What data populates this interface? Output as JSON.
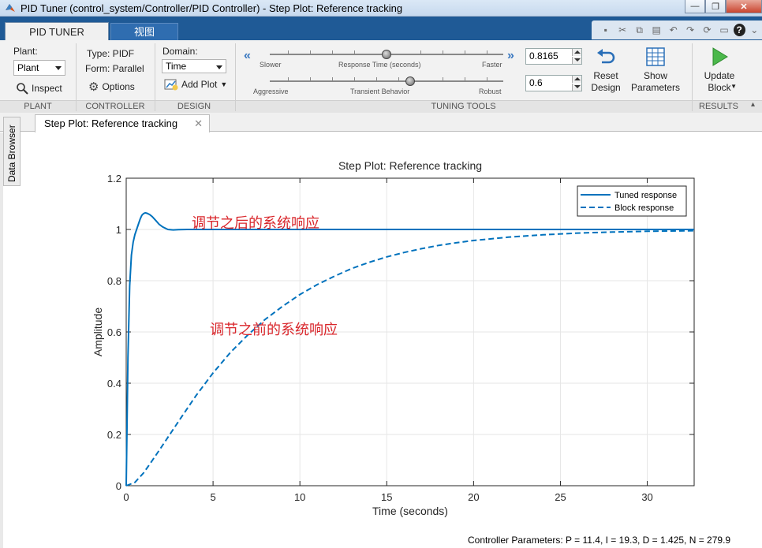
{
  "window": {
    "title": "PID Tuner (control_system/Controller/PID Controller) - Step Plot: Reference tracking",
    "minimize": "—",
    "maximize": "❐",
    "close": "✕"
  },
  "tabs": {
    "main": "PID TUNER",
    "view": "视图"
  },
  "ribbon": {
    "plant": {
      "label": "Plant:",
      "value": "Plant",
      "inspect": "Inspect",
      "section": "PLANT"
    },
    "controller": {
      "type": "Type: PIDF",
      "form": "Form: Parallel",
      "options": "Options",
      "section": "CONTROLLER"
    },
    "design": {
      "domain_label": "Domain:",
      "domain_value": "Time",
      "add_plot": "Add Plot",
      "section": "DESIGN"
    },
    "tuning": {
      "section": "TUNING TOOLS",
      "response_time": {
        "left": "Slower",
        "center": "Response Time (seconds)",
        "right": "Faster",
        "value": "0.8165",
        "level": 0.5
      },
      "transient": {
        "left": "Aggressive",
        "center": "Transient Behavior",
        "right": "Robust",
        "value": "0.6",
        "level": 0.6
      },
      "reset": "Reset\nDesign",
      "show": "Show\nParameters"
    },
    "results": {
      "update": "Update\nBlock",
      "section": "RESULTS"
    }
  },
  "documents": {
    "side_tab": "Data Browser",
    "active_tab": "Step Plot: Reference tracking",
    "close_symbol": "✕"
  },
  "annotations": {
    "after": "调节之后的系统响应",
    "before": "调节之前的系统响应",
    "color": "#d9262b"
  },
  "footer": "Controller Parameters: P = 11.4, I = 19.3, D = 1.425, N = 279.9",
  "chart_data": {
    "type": "line",
    "title": "Step Plot: Reference tracking",
    "xlabel": "Time (seconds)",
    "ylabel": "Amplitude",
    "xlim": [
      0,
      32.7
    ],
    "ylim": [
      0,
      1.2
    ],
    "xticks": [
      0,
      5,
      10,
      15,
      20,
      25,
      30
    ],
    "yticks": [
      0,
      0.2,
      0.4,
      0.6,
      0.8,
      1,
      1.2
    ],
    "ytick_labels": [
      "0",
      "0.2",
      "0.4",
      "0.6",
      "0.8",
      "1",
      "1.2"
    ],
    "grid": true,
    "legend_position": "top-right",
    "series": [
      {
        "name": "Tuned response",
        "style": "solid",
        "color": "#0072bd",
        "x": [
          0,
          0.1,
          0.2,
          0.3,
          0.4,
          0.5,
          0.6,
          0.7,
          0.8,
          0.9,
          1.0,
          1.1,
          1.2,
          1.35,
          1.5,
          1.7,
          1.9,
          2.1,
          2.4,
          2.7,
          3.0,
          3.5,
          4,
          10,
          20,
          32.7
        ],
        "y": [
          0,
          0.5,
          0.78,
          0.9,
          0.95,
          0.98,
          1.0,
          1.02,
          1.04,
          1.055,
          1.062,
          1.065,
          1.063,
          1.058,
          1.05,
          1.035,
          1.02,
          1.01,
          1.0,
          0.998,
          0.999,
          1.0,
          1.0,
          1.0,
          1.0,
          1.0
        ]
      },
      {
        "name": "Block response",
        "style": "dashed",
        "color": "#0072bd",
        "x": [
          0,
          0.5,
          1,
          1.5,
          2,
          3,
          4,
          5,
          6,
          7,
          8,
          9,
          10,
          11,
          12,
          13,
          14,
          15,
          16,
          17,
          18,
          19,
          20,
          22,
          24,
          26,
          28,
          30,
          32.7
        ],
        "y": [
          0,
          0.013,
          0.05,
          0.098,
          0.148,
          0.25,
          0.35,
          0.44,
          0.52,
          0.588,
          0.649,
          0.7,
          0.746,
          0.785,
          0.818,
          0.848,
          0.872,
          0.893,
          0.91,
          0.925,
          0.938,
          0.948,
          0.957,
          0.97,
          0.979,
          0.986,
          0.99,
          0.993,
          0.995
        ]
      }
    ]
  }
}
